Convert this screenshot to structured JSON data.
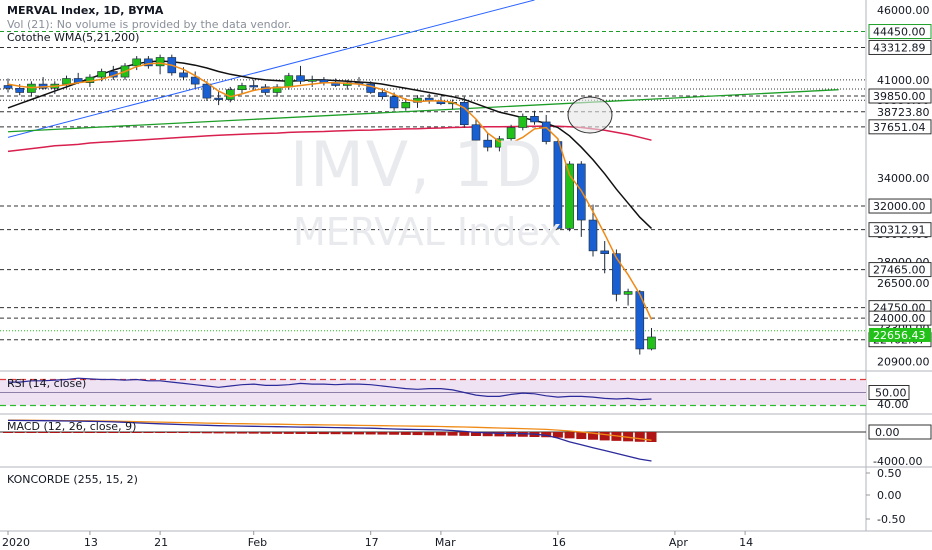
{
  "header": {
    "title": "MERVAL Index, 1D, BYMA",
    "volume_note": "Vol (21): No volume is provided by the data vendor.",
    "indicator_note": "Cotothe WMA(5,21,200)"
  },
  "watermark": {
    "symbol": "IMV, 1D",
    "name": "MERVAL Index"
  },
  "panels": {
    "rsi_label": "RSI (14, close)",
    "macd_label": "MACD (12, 26, close, 9)",
    "koncorde_label": "KONCORDE (255, 15, 2)"
  },
  "colors": {
    "up": "#22c11a",
    "down": "#1a5fd1",
    "wma_fast": "#f08a16",
    "wma_mid": "#111111",
    "wma_slow": "#d81f4e",
    "trend_blue": "#2962ff",
    "trend_green": "#1e9e28",
    "rsi_band": "#efe3f3",
    "rsi_line": "#2c2a9a",
    "macd_hist": "#b01515",
    "last_price_tag": "#22c11a"
  },
  "chart_data": [
    {
      "type": "candlestick",
      "title": "MERVAL Index, 1D, BYMA",
      "x_tick_labels": [
        "2020",
        "13",
        "21",
        "Feb",
        "17",
        "Mar",
        "16",
        "Apr",
        "14"
      ],
      "x_ticks_at_index": [
        0,
        7,
        13,
        21,
        31,
        37,
        47,
        57,
        63
      ],
      "y_ticks": [
        46000,
        41000,
        39550,
        38723.8,
        34000,
        30000,
        28000,
        26500,
        23300,
        20900
      ],
      "ylim": [
        20300,
        46700
      ],
      "horizontal_levels": [
        44450,
        43312.89,
        41000,
        40350,
        39850,
        39550,
        38723.8,
        37651.04,
        32000,
        30312.91,
        27465,
        24750,
        24000,
        22462.07
      ],
      "level_tags": [
        "44450.00",
        "43312.89",
        "39850.00",
        "37651.04",
        "32000.00",
        "30312.91",
        "27465.00",
        "24750.00",
        "24000.00",
        "22462.07"
      ],
      "last_price": "22656.43",
      "candles": [
        {
          "o": 40600,
          "h": 41100,
          "l": 40100,
          "c": 40400
        },
        {
          "o": 40400,
          "h": 40700,
          "l": 39900,
          "c": 40100
        },
        {
          "o": 40100,
          "h": 40900,
          "l": 39800,
          "c": 40700
        },
        {
          "o": 40700,
          "h": 41200,
          "l": 40300,
          "c": 40400
        },
        {
          "o": 40400,
          "h": 40900,
          "l": 40000,
          "c": 40700
        },
        {
          "o": 40700,
          "h": 41300,
          "l": 40400,
          "c": 41100
        },
        {
          "o": 41100,
          "h": 41500,
          "l": 40700,
          "c": 40800
        },
        {
          "o": 40800,
          "h": 41400,
          "l": 40500,
          "c": 41200
        },
        {
          "o": 41200,
          "h": 41800,
          "l": 40900,
          "c": 41600
        },
        {
          "o": 41600,
          "h": 42000,
          "l": 41000,
          "c": 41200
        },
        {
          "o": 41200,
          "h": 42200,
          "l": 41000,
          "c": 42000
        },
        {
          "o": 42000,
          "h": 42700,
          "l": 41700,
          "c": 42500
        },
        {
          "o": 42500,
          "h": 42700,
          "l": 41800,
          "c": 42000
        },
        {
          "o": 42000,
          "h": 42800,
          "l": 41400,
          "c": 42600
        },
        {
          "o": 42600,
          "h": 42800,
          "l": 41300,
          "c": 41500
        },
        {
          "o": 41500,
          "h": 41900,
          "l": 41000,
          "c": 41200
        },
        {
          "o": 41200,
          "h": 41600,
          "l": 40400,
          "c": 40700
        },
        {
          "o": 40700,
          "h": 40900,
          "l": 39500,
          "c": 39700
        },
        {
          "o": 39700,
          "h": 40200,
          "l": 39200,
          "c": 39600
        },
        {
          "o": 39600,
          "h": 40500,
          "l": 39400,
          "c": 40300
        },
        {
          "o": 40300,
          "h": 40800,
          "l": 40000,
          "c": 40600
        },
        {
          "o": 40600,
          "h": 41000,
          "l": 40200,
          "c": 40500
        },
        {
          "o": 40500,
          "h": 40700,
          "l": 39900,
          "c": 40100
        },
        {
          "o": 40100,
          "h": 40700,
          "l": 39800,
          "c": 40500
        },
        {
          "o": 40500,
          "h": 41500,
          "l": 40300,
          "c": 41300
        },
        {
          "o": 41300,
          "h": 42000,
          "l": 40700,
          "c": 40900
        },
        {
          "o": 40900,
          "h": 41300,
          "l": 40500,
          "c": 41000
        },
        {
          "o": 41000,
          "h": 41200,
          "l": 40600,
          "c": 40800
        },
        {
          "o": 40800,
          "h": 41100,
          "l": 40500,
          "c": 40600
        },
        {
          "o": 40600,
          "h": 41000,
          "l": 40300,
          "c": 40800
        },
        {
          "o": 40800,
          "h": 41200,
          "l": 40500,
          "c": 40700
        },
        {
          "o": 40700,
          "h": 40900,
          "l": 40000,
          "c": 40100
        },
        {
          "o": 40100,
          "h": 40400,
          "l": 39600,
          "c": 39800
        },
        {
          "o": 39800,
          "h": 40100,
          "l": 38800,
          "c": 39000
        },
        {
          "o": 39000,
          "h": 39700,
          "l": 38800,
          "c": 39400
        },
        {
          "o": 39400,
          "h": 39900,
          "l": 39000,
          "c": 39700
        },
        {
          "o": 39700,
          "h": 40000,
          "l": 39300,
          "c": 39500
        },
        {
          "o": 39500,
          "h": 39800,
          "l": 39200,
          "c": 39300
        },
        {
          "o": 39300,
          "h": 39600,
          "l": 38900,
          "c": 39400
        },
        {
          "o": 39400,
          "h": 39800,
          "l": 37600,
          "c": 37800
        },
        {
          "o": 37800,
          "h": 38200,
          "l": 36100,
          "c": 36700
        },
        {
          "o": 36700,
          "h": 37200,
          "l": 35900,
          "c": 36200
        },
        {
          "o": 36200,
          "h": 37000,
          "l": 35900,
          "c": 36800
        },
        {
          "o": 36800,
          "h": 37800,
          "l": 36400,
          "c": 37600
        },
        {
          "o": 37600,
          "h": 38600,
          "l": 37400,
          "c": 38400
        },
        {
          "o": 38400,
          "h": 38800,
          "l": 37800,
          "c": 38000
        },
        {
          "o": 38000,
          "h": 38500,
          "l": 36400,
          "c": 36600
        },
        {
          "o": 36600,
          "h": 36800,
          "l": 30300,
          "c": 30400
        },
        {
          "o": 30400,
          "h": 35200,
          "l": 30200,
          "c": 35000
        },
        {
          "o": 35000,
          "h": 35200,
          "l": 29800,
          "c": 31000
        },
        {
          "o": 31000,
          "h": 32100,
          "l": 28400,
          "c": 28800
        },
        {
          "o": 28800,
          "h": 29500,
          "l": 27200,
          "c": 28600
        },
        {
          "o": 28600,
          "h": 28900,
          "l": 25200,
          "c": 25700
        },
        {
          "o": 25700,
          "h": 26100,
          "l": 24900,
          "c": 25900
        },
        {
          "o": 25900,
          "h": 26000,
          "l": 21400,
          "c": 21800
        },
        {
          "o": 21800,
          "h": 23300,
          "l": 21700,
          "c": 22656.43
        }
      ],
      "wma_fast": [
        40700,
        40550,
        40450,
        40500,
        40550,
        40650,
        40800,
        40900,
        41050,
        41300,
        41600,
        41950,
        42150,
        42200,
        42050,
        41750,
        41300,
        40800,
        40200,
        39800,
        40000,
        40250,
        40400,
        40450,
        40500,
        40600,
        40700,
        40800,
        40800,
        40750,
        40700,
        40550,
        40300,
        39950,
        39600,
        39450,
        39500,
        39500,
        39400,
        39000,
        38200,
        37200,
        36600,
        36500,
        36900,
        37500,
        37600,
        36800,
        34200,
        33100,
        31600,
        30000,
        28300,
        27100,
        25700,
        23900
      ],
      "wma_mid": [
        39000,
        39300,
        39600,
        39900,
        40200,
        40500,
        40800,
        41100,
        41400,
        41700,
        41950,
        42150,
        42300,
        42350,
        42300,
        42200,
        42050,
        41850,
        41600,
        41400,
        41250,
        41100,
        41000,
        40950,
        40900,
        40950,
        41000,
        41000,
        40950,
        40900,
        40850,
        40800,
        40700,
        40550,
        40400,
        40250,
        40100,
        39950,
        39800,
        39600,
        39300,
        39000,
        38700,
        38500,
        38300,
        38100,
        37900,
        37600,
        37000,
        36200,
        35300,
        34300,
        33200,
        32200,
        31200,
        30400
      ],
      "wma_slow": [
        35900,
        36000,
        36100,
        36200,
        36300,
        36350,
        36400,
        36500,
        36550,
        36600,
        36650,
        36700,
        36750,
        36800,
        36850,
        36900,
        36950,
        37000,
        37050,
        37080,
        37120,
        37150,
        37180,
        37200,
        37250,
        37280,
        37300,
        37320,
        37350,
        37380,
        37400,
        37420,
        37450,
        37480,
        37500,
        37520,
        37550,
        37570,
        37600,
        37620,
        37640,
        37650,
        37660,
        37670,
        37680,
        37690,
        37700,
        37690,
        37650,
        37600,
        37500,
        37400,
        37250,
        37100,
        36900,
        36700
      ],
      "trend_lines": [
        {
          "name": "rising blue",
          "from": [
            0,
            36900
          ],
          "to": [
            45,
            46700
          ]
        },
        {
          "name": "green support",
          "from": [
            0,
            37300
          ],
          "to": [
            71,
            40300
          ]
        }
      ]
    },
    {
      "type": "line",
      "title": "RSI (14, close)",
      "levels": [
        70,
        50,
        30
      ],
      "level_tags": [
        "50.00",
        "40.00"
      ],
      "values": [
        66,
        66,
        68,
        68,
        69,
        70,
        72,
        71,
        70,
        70,
        69,
        70,
        68,
        68,
        66,
        64,
        62,
        60,
        58,
        60,
        62,
        63,
        61,
        61,
        62,
        64,
        63,
        63,
        62,
        63,
        63,
        62,
        60,
        58,
        56,
        55,
        56,
        56,
        54,
        50,
        46,
        44,
        44,
        47,
        49,
        48,
        45,
        43,
        44,
        44,
        43,
        41,
        40,
        41,
        39,
        40
      ]
    },
    {
      "type": "bar",
      "title": "MACD (12, 26, close, 9)",
      "zero_tag": "0.00",
      "y_tick": "-4000.00",
      "histogram": [
        -40,
        -80,
        -120,
        -150,
        -180,
        -200,
        -180,
        -160,
        -150,
        -120,
        -100,
        -90,
        -110,
        -130,
        -160,
        -200,
        -240,
        -280,
        -300,
        -320,
        -340,
        -360,
        -380,
        -400,
        -420,
        -430,
        -440,
        -460,
        -480,
        -500,
        -520,
        -540,
        -560,
        -600,
        -640,
        -680,
        -720,
        -760,
        -800,
        -840,
        -880,
        -920,
        -960,
        -1000,
        -1050,
        -1100,
        -1150,
        -1250,
        -1400,
        -1550,
        -1700,
        -1850,
        -1950,
        -2050,
        -2150,
        -2200
      ],
      "macd_line": [
        -40,
        -50,
        -60,
        -70,
        -80,
        -100,
        -120,
        -140,
        -160,
        -200,
        -240,
        -300,
        -360,
        -400,
        -440,
        -480,
        -520,
        -560,
        -600,
        -620,
        -640,
        -660,
        -680,
        -700,
        -720,
        -740,
        -760,
        -780,
        -800,
        -820,
        -840,
        -860,
        -900,
        -940,
        -980,
        -1000,
        -1020,
        -1040,
        -1100,
        -1200,
        -1300,
        -1350,
        -1400,
        -1420,
        -1440,
        -1480,
        -1600,
        -1900,
        -2300,
        -2600,
        -2900,
        -3200,
        -3500,
        -3800,
        -4100,
        -4300
      ],
      "signal_line": [
        -20,
        -30,
        -40,
        -50,
        -60,
        -70,
        -80,
        -100,
        -120,
        -140,
        -170,
        -200,
        -230,
        -260,
        -290,
        -320,
        -350,
        -380,
        -410,
        -440,
        -460,
        -480,
        -500,
        -520,
        -540,
        -560,
        -580,
        -600,
        -620,
        -640,
        -660,
        -680,
        -700,
        -720,
        -740,
        -760,
        -780,
        -800,
        -830,
        -860,
        -900,
        -940,
        -980,
        -1020,
        -1060,
        -1100,
        -1160,
        -1240,
        -1350,
        -1480,
        -1620,
        -1780,
        -1950,
        -2120,
        -2300,
        -2500
      ]
    },
    {
      "type": "line",
      "title": "KONCORDE (255, 15, 2)",
      "y_ticks": [
        "0.50",
        "0.00",
        "-0.50"
      ]
    }
  ]
}
